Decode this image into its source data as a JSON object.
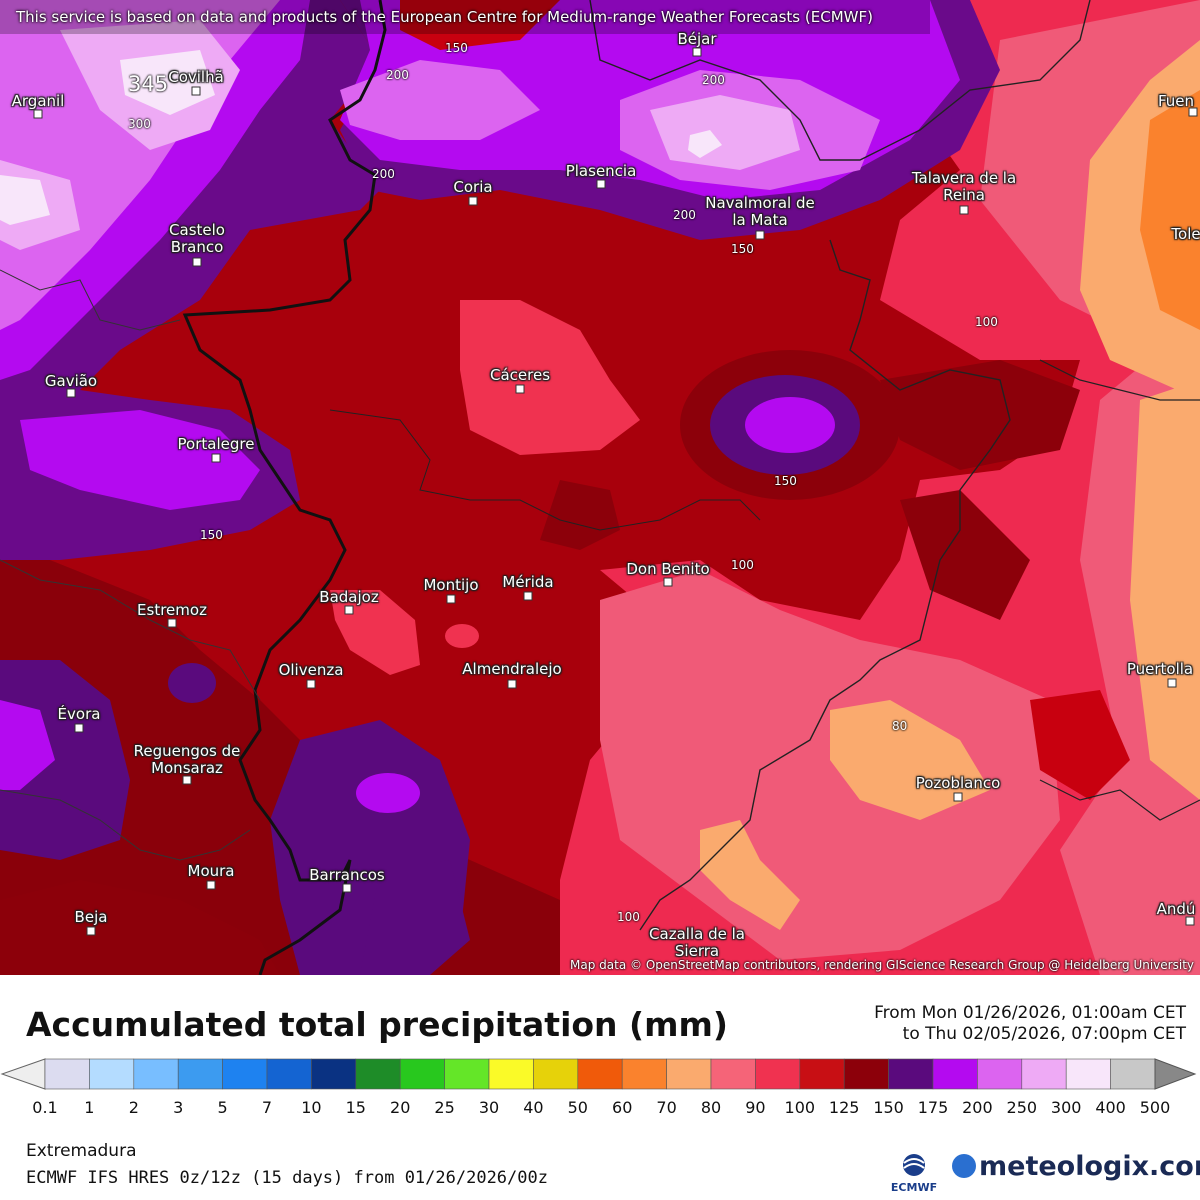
{
  "notice": "This service is based on data and products of the European Centre for Medium-range Weather Forecasts (ECMWF)",
  "attribution": "Map data © OpenStreetMap contributors, rendering GIScience Research Group @ Heidelberg University",
  "cities": {
    "covilha": "Covilhã",
    "arganil": "Arganil",
    "bejar": "Béjar",
    "fuen": "Fuen",
    "coria": "Coria",
    "plasencia": "Plasencia",
    "navalmoral": "Navalmoral de la Mata",
    "talavera": "Talavera de la Reina",
    "castelo": "Castelo Branco",
    "tole": "Tole",
    "gaviao": "Gavião",
    "caceres": "Cáceres",
    "portalegre": "Portalegre",
    "badajoz": "Badajoz",
    "montijo": "Montijo",
    "merida": "Mérida",
    "donbenito": "Don Benito",
    "estremoz": "Estremoz",
    "olivenza": "Olivenza",
    "almendralejo": "Almendralejo",
    "puertolla": "Puertolla",
    "evora": "Évora",
    "reguengos": "Reguengos de Monsaraz",
    "pozoblanco": "Pozoblanco",
    "moura": "Moura",
    "barrancos": "Barrancos",
    "beja": "Beja",
    "andu": "Andú",
    "cazalla": "Cazalla de la Sierra"
  },
  "contour_labels": [
    "345",
    "300",
    "150",
    "200",
    "200",
    "200",
    "200",
    "150",
    "100",
    "150",
    "150",
    "100",
    "80",
    "100"
  ],
  "footer": {
    "title": "Accumulated total precipitation (mm)",
    "period_from": "From Mon 01/26/2026, 01:00am CET",
    "period_to": "to Thu 02/05/2026, 07:00pm CET",
    "region": "Extremadura",
    "model": "ECMWF IFS HRES 0z/12z (15 days) from  01/26/2026/00z",
    "ecmwf_label": "ECMWF",
    "brand": "meteologix.com"
  },
  "legend": {
    "ticks": [
      "0.1",
      "1",
      "2",
      "3",
      "5",
      "7",
      "10",
      "15",
      "20",
      "25",
      "30",
      "40",
      "50",
      "60",
      "70",
      "80",
      "90",
      "100",
      "125",
      "150",
      "175",
      "200",
      "250",
      "300",
      "400",
      "500"
    ],
    "colors": [
      "#dcdcf0",
      "#b4dcff",
      "#78beff",
      "#3c9bf0",
      "#1e82f0",
      "#1464d2",
      "#0a3282",
      "#1e8c28",
      "#28c81e",
      "#64e628",
      "#fafa28",
      "#e6d20a",
      "#f05a0a",
      "#fa822d",
      "#faaa6e",
      "#f56478",
      "#f03250",
      "#c80f14",
      "#8c000a",
      "#5a0a7d",
      "#b40af0",
      "#dc64f0",
      "#eeaaf5",
      "#f8e6fa",
      "#c8c8c8"
    ]
  }
}
